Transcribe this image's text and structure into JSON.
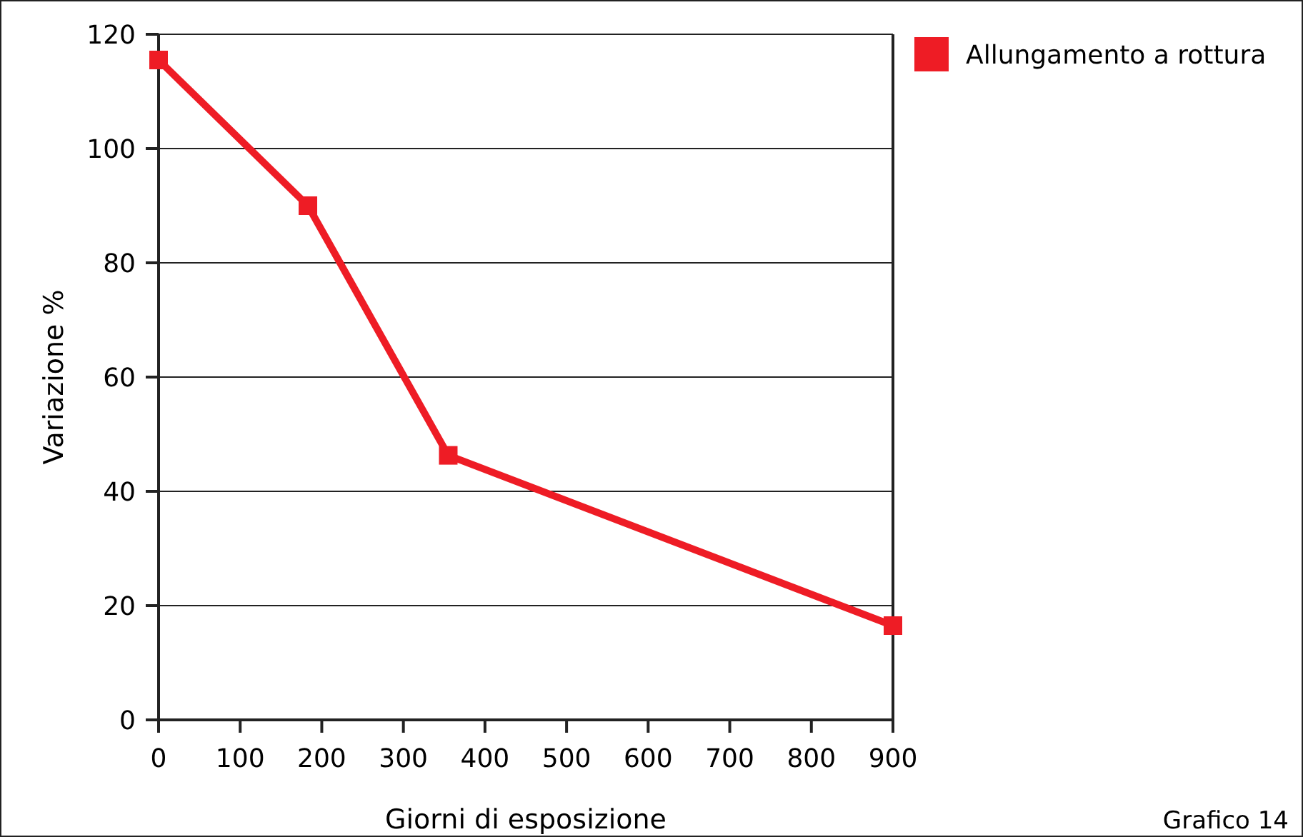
{
  "chart_data": {
    "type": "line",
    "xlabel": "Giorni di esposizione",
    "ylabel": "Variazione %",
    "annotations": [
      "Grafico 14"
    ],
    "x": [
      0,
      183,
      355,
      900
    ],
    "series": [
      {
        "name": "Allungamento a rottura",
        "color": "#ee1c25",
        "values": [
          115.5,
          90,
          46.3,
          16.5
        ]
      }
    ],
    "xlim": [
      0,
      900
    ],
    "xticks": [
      0,
      100,
      200,
      300,
      400,
      500,
      600,
      700,
      800,
      900
    ],
    "ylim": [
      0,
      120
    ],
    "yticks": [
      0,
      20,
      40,
      60,
      80,
      100,
      120
    ],
    "grid": "y",
    "legend": "top right",
    "marker": "square",
    "line_style": "solid"
  }
}
